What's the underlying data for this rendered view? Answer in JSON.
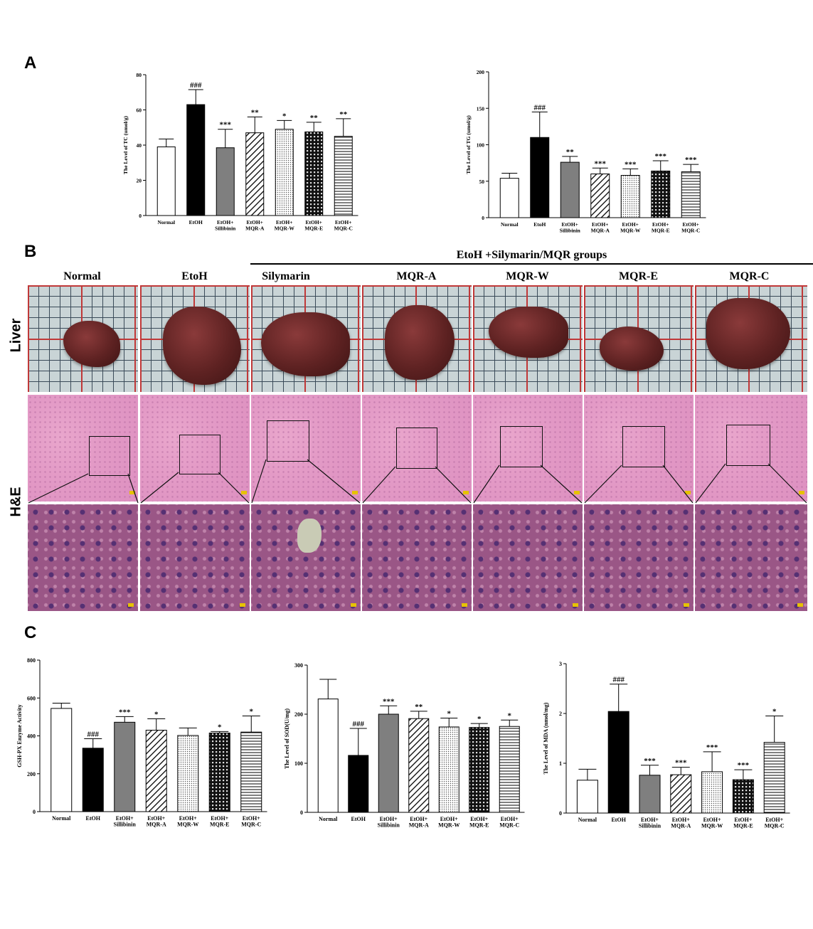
{
  "panels": {
    "a": "A",
    "b": "B",
    "c": "C"
  },
  "panel_b": {
    "group_header": "EtoH +Silymarin/MQR groups",
    "columns": [
      "Normal",
      "EtoH",
      "Silymarin",
      "MQR-A",
      "MQR-W",
      "MQR-E",
      "MQR-C"
    ],
    "row_labels": {
      "liver": "Liver",
      "he": "H&E"
    }
  },
  "chart_data": [
    {
      "id": "tc",
      "type": "bar",
      "ylabel": "The Level of TC (umol/g)",
      "ylim": [
        0,
        80
      ],
      "yticks": [
        0,
        20,
        40,
        60,
        80
      ],
      "categories": [
        [
          "Normal"
        ],
        [
          "EtOH"
        ],
        [
          "EtOH+",
          "Sillibinin"
        ],
        [
          "EtOH+",
          "MQR-A"
        ],
        [
          "EtOH+",
          "MQR-W"
        ],
        [
          "EtOH+",
          "MQR-E"
        ],
        [
          "EtOH+",
          "MQR-C"
        ]
      ],
      "values": [
        39,
        63,
        38.5,
        47,
        49,
        47.5,
        45
      ],
      "errors": [
        4.5,
        8.5,
        10.5,
        9,
        5,
        5.5,
        10
      ],
      "annotations": [
        "",
        "###",
        "***",
        "**",
        "*",
        "**",
        "**"
      ]
    },
    {
      "id": "tg",
      "type": "bar",
      "ylabel": "The Level of TG (umol/g)",
      "ylim": [
        0,
        200
      ],
      "yticks": [
        0,
        50,
        100,
        150,
        200
      ],
      "categories": [
        [
          "Normal"
        ],
        [
          "EtoH"
        ],
        [
          "EtOH+",
          "Sillibinin"
        ],
        [
          "EtOH+",
          "MQR-A"
        ],
        [
          "EtOH+",
          "MQR-W"
        ],
        [
          "EtOH+",
          "MQR-E"
        ],
        [
          "EtOH+",
          "MQR-C"
        ]
      ],
      "values": [
        54,
        110,
        76,
        60,
        58,
        64,
        63
      ],
      "errors": [
        7,
        35,
        8,
        8,
        9,
        14,
        10
      ],
      "annotations": [
        "",
        "###",
        "**",
        "***",
        "***",
        "***",
        "***"
      ]
    },
    {
      "id": "gsh",
      "type": "bar",
      "ylabel": "GSH-PX Enzyme Activity",
      "ylim": [
        0,
        800
      ],
      "yticks": [
        0,
        200,
        400,
        600,
        800
      ],
      "categories": [
        [
          "Normal"
        ],
        [
          "EtOH"
        ],
        [
          "EtOH+",
          "Sillibinin"
        ],
        [
          "EtOH+",
          "MQR-A"
        ],
        [
          "EtOH+",
          "MQR-W"
        ],
        [
          "EtOH+",
          "MQR-E"
        ],
        [
          "EtOH+",
          "MQR-C"
        ]
      ],
      "values": [
        545,
        335,
        472,
        430,
        402,
        415,
        420
      ],
      "errors": [
        28,
        50,
        30,
        60,
        40,
        8,
        85
      ],
      "annotations": [
        "",
        "###",
        "***",
        "*",
        "",
        "*",
        "*"
      ]
    },
    {
      "id": "sod",
      "type": "bar",
      "ylabel": "The Level of SOD(U/mg)",
      "ylim": [
        0,
        300
      ],
      "yticks": [
        0,
        100,
        200,
        300
      ],
      "categories": [
        [
          "Normal"
        ],
        [
          "EtOH"
        ],
        [
          "EtOH+",
          "Sillibinin"
        ],
        [
          "EtOH+",
          "MQR-A"
        ],
        [
          "EtOH+",
          "MQR-W"
        ],
        [
          "EtOH+",
          "MQR-E"
        ],
        [
          "EtOH+",
          "MQR-C"
        ]
      ],
      "values": [
        231,
        116,
        200,
        191,
        174,
        173,
        175
      ],
      "errors": [
        40,
        55,
        17,
        15,
        18,
        8,
        13
      ],
      "annotations": [
        "",
        "###",
        "***",
        "**",
        "*",
        "*",
        "*"
      ]
    },
    {
      "id": "mda",
      "type": "bar",
      "ylabel": "The Level of MDA (nmol/mg)",
      "ylim": [
        0,
        3
      ],
      "yticks": [
        0,
        1,
        2,
        3
      ],
      "categories": [
        [
          "Normal"
        ],
        [
          "EtOH"
        ],
        [
          "EtOH+",
          "Sillibinin"
        ],
        [
          "EtOH+",
          "MQR-A"
        ],
        [
          "EtOH+",
          "MQR-W"
        ],
        [
          "EtOH+",
          "MQR-E"
        ],
        [
          "EtOH+",
          "MQR-C"
        ]
      ],
      "values": [
        0.66,
        2.04,
        0.76,
        0.77,
        0.83,
        0.67,
        1.42
      ],
      "errors": [
        0.22,
        0.55,
        0.2,
        0.15,
        0.4,
        0.2,
        0.53
      ],
      "annotations": [
        "",
        "###",
        "***",
        "***",
        "***",
        "***",
        "*"
      ]
    }
  ]
}
